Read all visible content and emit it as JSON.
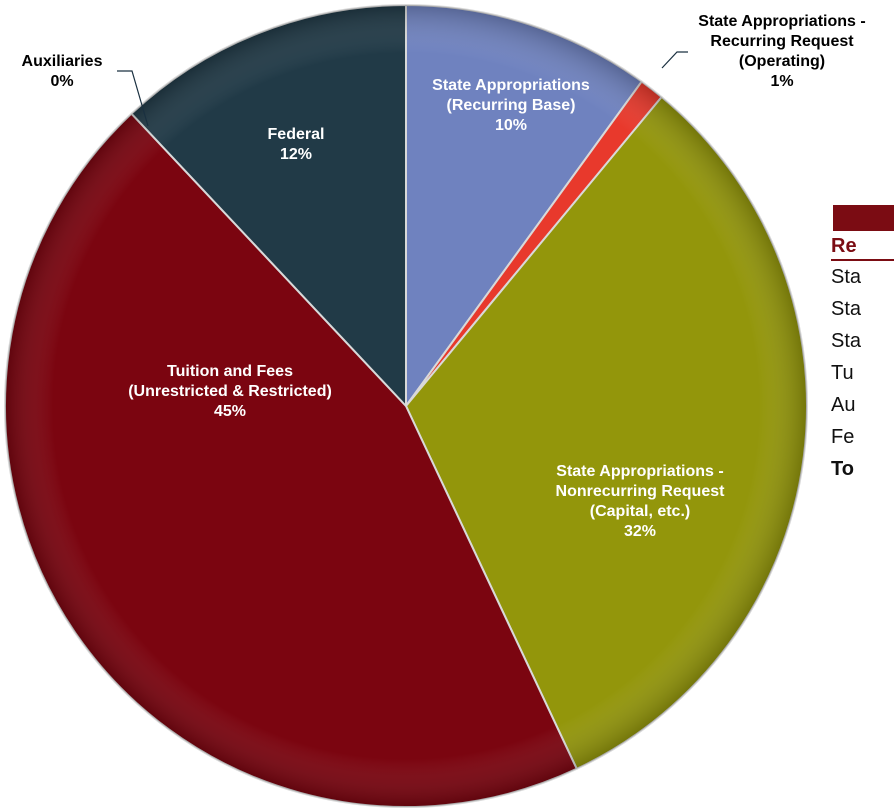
{
  "chart_data": {
    "type": "pie",
    "title": "",
    "slices": [
      {
        "key": "recurring_base",
        "label": [
          "State Appropriations",
          "(Recurring Base)"
        ],
        "value": 10,
        "value_label": "10%",
        "color": "#6f82bf",
        "label_color": "#ffffff"
      },
      {
        "key": "recurring_request",
        "label": [
          "State Appropriations -",
          "Recurring Request",
          "(Operating)"
        ],
        "value": 1,
        "value_label": "1%",
        "color": "#e8392c",
        "label_color": "#000000"
      },
      {
        "key": "nonrecurring_request",
        "label": [
          "State Appropriations -",
          "Nonrecurring Request",
          "(Capital, etc.)"
        ],
        "value": 32,
        "value_label": "32%",
        "color": "#93960b",
        "label_color": "#ffffff"
      },
      {
        "key": "tuition_fees",
        "label": [
          "Tuition and Fees",
          "(Unrestricted & Restricted)"
        ],
        "value": 45,
        "value_label": "45%",
        "color": "#7b0510",
        "label_color": "#ffffff"
      },
      {
        "key": "auxiliaries",
        "label": [
          "Auxiliaries"
        ],
        "value": 0,
        "value_label": "0%",
        "color": "#1f3a4a",
        "label_color": "#000000"
      },
      {
        "key": "federal",
        "label": [
          "Federal"
        ],
        "value": 12,
        "value_label": "12%",
        "color": "#213a47",
        "label_color": "#ffffff"
      }
    ]
  },
  "legend_table": {
    "title": "Re",
    "rows": [
      "Sta",
      "Sta",
      "Sta",
      "Tu",
      "Au",
      "Fe"
    ],
    "total": "To"
  }
}
